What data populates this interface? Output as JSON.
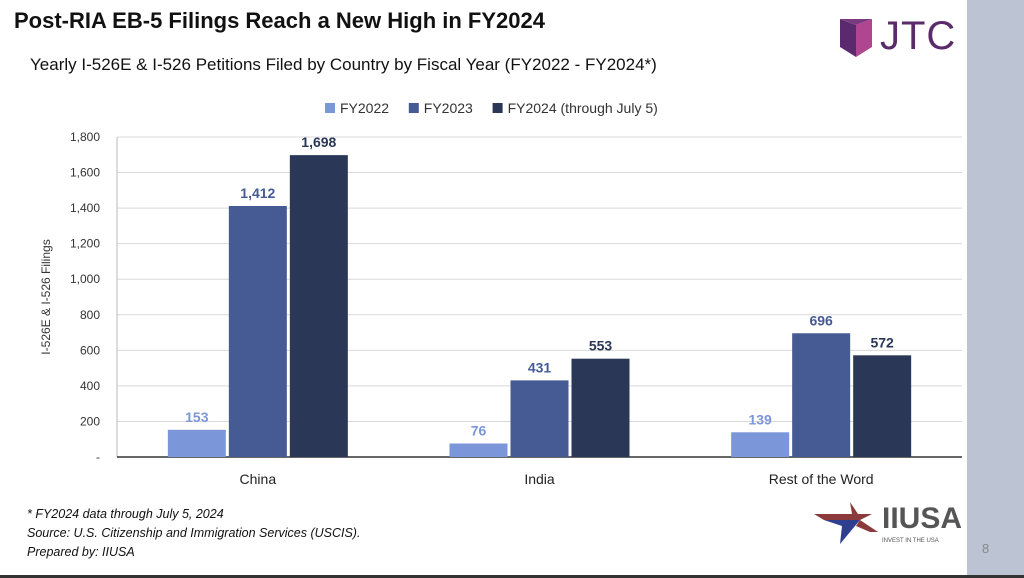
{
  "title": "Post-RIA EB-5 Filings Reach a New High in FY2024",
  "subtitle": "Yearly I-526E & I-526 Petitions Filed by Country by Fiscal Year (FY2022 - FY2024*)",
  "logo_jtc": "JTC",
  "logo_iiusa": {
    "name": "IIUSA",
    "tagline": "INVEST IN THE USA"
  },
  "page_number": "8",
  "footnotes": [
    "* FY2024 data through July 5, 2024",
    "Source: U.S. Citizenship and Immigration Services (USCIS).",
    "Prepared by: IIUSA"
  ],
  "chart_data": {
    "type": "bar",
    "categories": [
      "China",
      "India",
      "Rest of the Word"
    ],
    "series": [
      {
        "name": "FY2022",
        "values": [
          153,
          76,
          139
        ],
        "color": "#7b96d9"
      },
      {
        "name": "FY2023",
        "values": [
          1412,
          431,
          696
        ],
        "color": "#465a94"
      },
      {
        "name": "FY2024 (through July 5)",
        "values": [
          1698,
          553,
          572
        ],
        "color": "#2a3757"
      }
    ],
    "ylabel": "I-526E & I-526 Filings",
    "ylim": [
      0,
      1800
    ],
    "yticks": [
      0,
      200,
      400,
      600,
      800,
      1000,
      1200,
      1400,
      1600,
      1800
    ],
    "ytick_labels": [
      "-",
      "200",
      "400",
      "600",
      "800",
      "1,000",
      "1,200",
      "1,400",
      "1,600",
      "1,800"
    ],
    "legend": "top",
    "grid": true
  }
}
